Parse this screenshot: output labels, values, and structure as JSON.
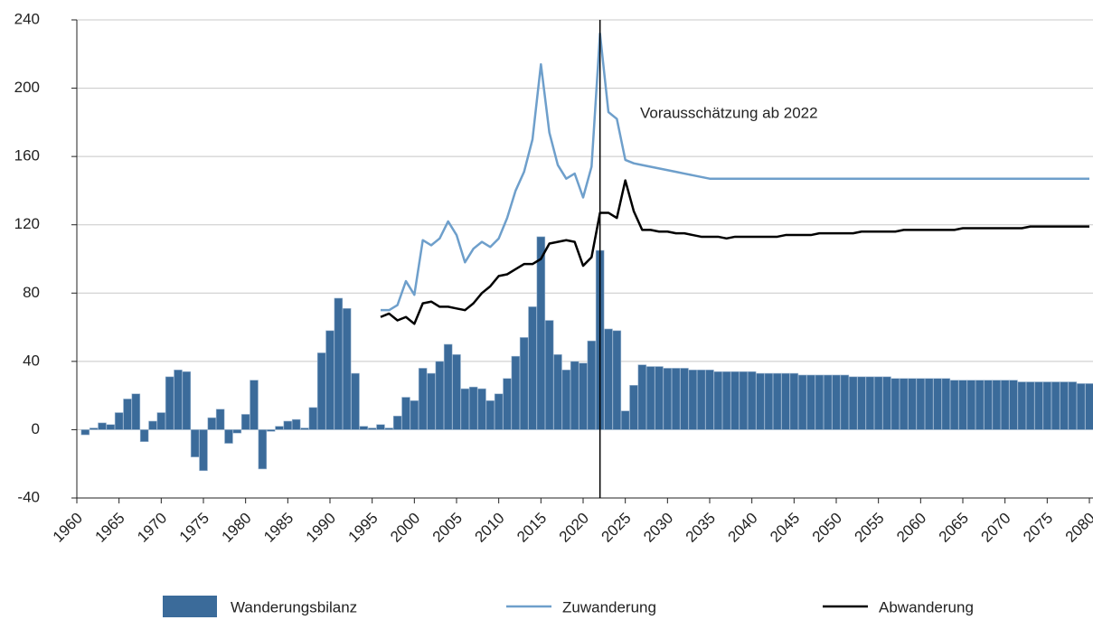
{
  "chart_data": {
    "type": "bar_line",
    "x": [
      1960,
      1961,
      1962,
      1963,
      1964,
      1965,
      1966,
      1967,
      1968,
      1969,
      1970,
      1971,
      1972,
      1973,
      1974,
      1975,
      1976,
      1977,
      1978,
      1979,
      1980,
      1981,
      1982,
      1983,
      1984,
      1985,
      1986,
      1987,
      1988,
      1989,
      1990,
      1991,
      1992,
      1993,
      1994,
      1995,
      1996,
      1997,
      1998,
      1999,
      2000,
      2001,
      2002,
      2003,
      2004,
      2005,
      2006,
      2007,
      2008,
      2009,
      2010,
      2011,
      2012,
      2013,
      2014,
      2015,
      2016,
      2017,
      2018,
      2019,
      2020,
      2021,
      2022,
      2023,
      2024,
      2025,
      2026,
      2027,
      2028,
      2029,
      2030,
      2031,
      2032,
      2033,
      2034,
      2035,
      2036,
      2037,
      2038,
      2039,
      2040,
      2041,
      2042,
      2043,
      2044,
      2045,
      2046,
      2047,
      2048,
      2049,
      2050,
      2051,
      2052,
      2053,
      2054,
      2055,
      2056,
      2057,
      2058,
      2059,
      2060,
      2061,
      2062,
      2063,
      2064,
      2065,
      2066,
      2067,
      2068,
      2069,
      2070,
      2071,
      2072,
      2073,
      2074,
      2075,
      2076,
      2077,
      2078,
      2079,
      2080
    ],
    "series": [
      {
        "name": "Wanderungsbilanz",
        "kind": "bar",
        "color": "#3b6b9a",
        "values": [
          null,
          -3,
          1,
          4,
          3,
          10,
          18,
          21,
          -7,
          5,
          10,
          31,
          35,
          34,
          -16,
          -24,
          7,
          12,
          -8,
          -2,
          9,
          29,
          -23,
          -1,
          2,
          5,
          6,
          1,
          13,
          45,
          58,
          77,
          71,
          33,
          2,
          1,
          3,
          1,
          8,
          19,
          17,
          36,
          33,
          40,
          50,
          44,
          24,
          25,
          24,
          17,
          21,
          30,
          43,
          54,
          72,
          113,
          64,
          44,
          35,
          40,
          39,
          52,
          105,
          59,
          58,
          11,
          26,
          38,
          37,
          37,
          36,
          36,
          36,
          35,
          35,
          35,
          34,
          34,
          34,
          34,
          34,
          33,
          33,
          33,
          33,
          33,
          32,
          32,
          32,
          32,
          32,
          32,
          31,
          31,
          31,
          31,
          31,
          30,
          30,
          30,
          30,
          30,
          30,
          30,
          29,
          29,
          29,
          29,
          29,
          29,
          29,
          29,
          28,
          28,
          28,
          28,
          28,
          28,
          28,
          27,
          27
        ]
      },
      {
        "name": "Zuwanderung",
        "kind": "line",
        "color": "#6e9fcb",
        "values": [
          null,
          null,
          null,
          null,
          null,
          null,
          null,
          null,
          null,
          null,
          null,
          null,
          null,
          null,
          null,
          null,
          null,
          null,
          null,
          null,
          null,
          null,
          null,
          null,
          null,
          null,
          null,
          null,
          null,
          null,
          null,
          null,
          null,
          null,
          null,
          null,
          70,
          70,
          73,
          87,
          79,
          111,
          108,
          112,
          122,
          114,
          98,
          106,
          110,
          107,
          112,
          124,
          140,
          151,
          170,
          214,
          174,
          155,
          147,
          150,
          136,
          154,
          232,
          186,
          182,
          158,
          156,
          155,
          154,
          153,
          152,
          151,
          150,
          149,
          148,
          147,
          147,
          147,
          147,
          147,
          147,
          147,
          147,
          147,
          147,
          147,
          147,
          147,
          147,
          147,
          147,
          147,
          147,
          147,
          147,
          147,
          147,
          147,
          147,
          147,
          147,
          147,
          147,
          147,
          147,
          147,
          147,
          147,
          147,
          147,
          147,
          147,
          147,
          147,
          147,
          147,
          147,
          147,
          147,
          147,
          147
        ]
      },
      {
        "name": "Abwanderung",
        "kind": "line",
        "color": "#000000",
        "values": [
          null,
          null,
          null,
          null,
          null,
          null,
          null,
          null,
          null,
          null,
          null,
          null,
          null,
          null,
          null,
          null,
          null,
          null,
          null,
          null,
          null,
          null,
          null,
          null,
          null,
          null,
          null,
          null,
          null,
          null,
          null,
          null,
          null,
          null,
          null,
          null,
          66,
          68,
          64,
          66,
          62,
          74,
          75,
          72,
          72,
          71,
          70,
          74,
          80,
          84,
          90,
          91,
          94,
          97,
          97,
          100,
          109,
          110,
          111,
          110,
          96,
          101,
          127,
          127,
          124,
          146,
          128,
          117,
          117,
          116,
          116,
          115,
          115,
          114,
          113,
          113,
          113,
          112,
          113,
          113,
          113,
          113,
          113,
          113,
          114,
          114,
          114,
          114,
          115,
          115,
          115,
          115,
          115,
          116,
          116,
          116,
          116,
          116,
          117,
          117,
          117,
          117,
          117,
          117,
          117,
          118,
          118,
          118,
          118,
          118,
          118,
          118,
          118,
          119,
          119,
          119,
          119,
          119,
          119,
          119,
          119
        ]
      }
    ],
    "annotation": {
      "text": "Vorausschätzung ab 2022",
      "x": 2022
    },
    "xlim": [
      1960,
      2080
    ],
    "xticks": [
      1960,
      1965,
      1970,
      1975,
      1980,
      1985,
      1990,
      1995,
      2000,
      2005,
      2010,
      2015,
      2020,
      2025,
      2030,
      2035,
      2040,
      2045,
      2050,
      2055,
      2060,
      2065,
      2070,
      2075,
      2080
    ],
    "ylim": [
      -40,
      240
    ],
    "yticks": [
      -40,
      0,
      40,
      80,
      120,
      160,
      200,
      240
    ],
    "grid": true,
    "legend": "bottom"
  }
}
